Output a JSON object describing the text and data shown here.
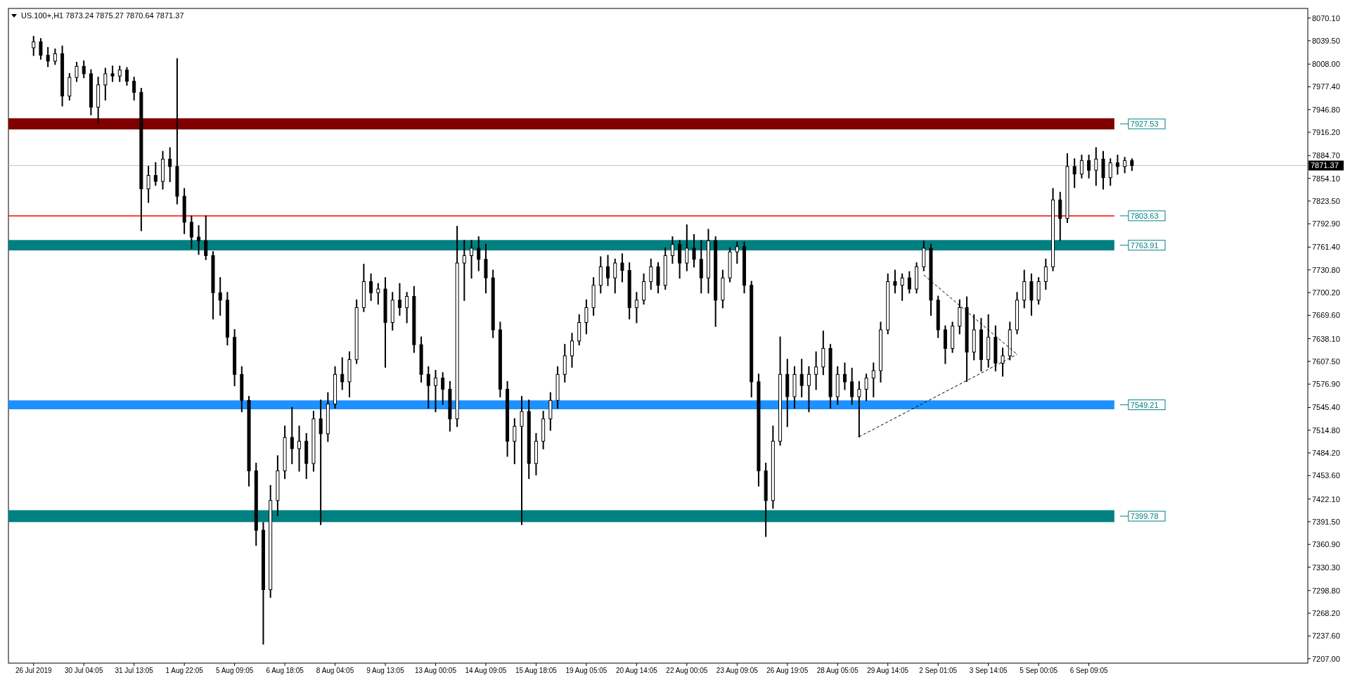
{
  "chart_data": {
    "type": "candlestick",
    "title": "US.100+,H1  7873.24 7875.27 7870.64 7871.37",
    "categories": [
      null,
      null,
      null,
      "26 Jul 2019",
      null,
      null,
      null,
      null,
      null,
      null,
      "30 Jul 04:05",
      null,
      null,
      null,
      null,
      null,
      null,
      "31 Jul 13:05",
      null,
      null,
      null,
      null,
      null,
      null,
      "1 Aug 22:05",
      null,
      null,
      null,
      null,
      null,
      null,
      "5 Aug 09:05",
      null,
      null,
      null,
      null,
      null,
      null,
      "6 Aug 18:05",
      null,
      null,
      null,
      null,
      null,
      null,
      "8 Aug 04:05",
      null,
      null,
      null,
      null,
      null,
      null,
      "9 Aug 13:05",
      null,
      null,
      null,
      null,
      null,
      null,
      "13 Aug 00:05",
      null,
      null,
      null,
      null,
      null,
      null,
      "14 Aug 09:05",
      null,
      null,
      null,
      null,
      null,
      null,
      "15 Aug 18:05",
      null,
      null,
      null,
      null,
      null,
      null,
      "19 Aug 05:05",
      null,
      null,
      null,
      null,
      null,
      null,
      "20 Aug 14:05",
      null,
      null,
      null,
      null,
      null,
      null,
      "22 Aug 00:05",
      null,
      null,
      null,
      null,
      null,
      null,
      "23 Aug 09:05",
      null,
      null,
      null,
      null,
      null,
      null,
      "26 Aug 19:05",
      null,
      null,
      null,
      null,
      null,
      null,
      "28 Aug 05:05",
      null,
      null,
      null,
      null,
      null,
      null,
      "29 Aug 14:05",
      null,
      null,
      null,
      null,
      null,
      null,
      "2 Sep 01:05",
      null,
      null,
      null,
      null,
      null,
      null,
      "3 Sep 14:05",
      null,
      null,
      null,
      null,
      null,
      null,
      "5 Sep 00:05",
      null,
      null,
      null,
      null,
      null,
      null,
      "6 Sep 09:05",
      null,
      null,
      null,
      null,
      null,
      null,
      null,
      null,
      null,
      null,
      null,
      null,
      null,
      null,
      null,
      null,
      null,
      null,
      null,
      null,
      null,
      null,
      null,
      null,
      null,
      null,
      null,
      null,
      null,
      null
    ],
    "ohlc": [
      null,
      null,
      null,
      [
        8030,
        8045,
        8020,
        8038
      ],
      [
        8038,
        8042,
        8015,
        8020
      ],
      [
        8020,
        8030,
        8005,
        8012
      ],
      [
        8012,
        8028,
        8008,
        8022
      ],
      [
        8022,
        8032,
        7952,
        7965
      ],
      [
        7965,
        7995,
        7960,
        7990
      ],
      [
        7990,
        8010,
        7985,
        8005
      ],
      [
        8005,
        8012,
        7990,
        7995
      ],
      [
        7995,
        8000,
        7940,
        7950
      ],
      [
        7950,
        7990,
        7929,
        7980
      ],
      [
        7980,
        8002,
        7960,
        7995
      ],
      [
        7995,
        8005,
        7985,
        7992
      ],
      [
        7992,
        8005,
        7985,
        8000
      ],
      [
        8000,
        8003,
        7980,
        7985
      ],
      [
        7985,
        7990,
        7960,
        7970
      ],
      [
        7970,
        7975,
        7784,
        7840
      ],
      [
        7840,
        7870,
        7822,
        7858
      ],
      [
        7858,
        7875,
        7845,
        7850
      ],
      [
        7850,
        7890,
        7840,
        7880
      ],
      [
        7880,
        7895,
        7850,
        7870
      ],
      [
        7870,
        8015,
        7820,
        7830
      ],
      [
        7830,
        7840,
        7780,
        7795
      ],
      [
        7795,
        7803,
        7760,
        7775
      ],
      [
        7775,
        7790,
        7752,
        7770
      ],
      [
        7770,
        7803,
        7745,
        7750
      ],
      [
        7750,
        7755,
        7665,
        7700
      ],
      [
        7700,
        7720,
        7670,
        7690
      ],
      [
        7690,
        7700,
        7630,
        7640
      ],
      [
        7640,
        7650,
        7575,
        7590
      ],
      [
        7590,
        7600,
        7540,
        7555
      ],
      [
        7555,
        7560,
        7440,
        7460
      ],
      [
        7460,
        7470,
        7360,
        7380
      ],
      [
        7380,
        7390,
        7227,
        7300
      ],
      [
        7300,
        7440,
        7290,
        7420
      ],
      [
        7420,
        7480,
        7400,
        7460
      ],
      [
        7460,
        7520,
        7450,
        7505
      ],
      [
        7505,
        7545,
        7470,
        7490
      ],
      [
        7490,
        7520,
        7460,
        7500
      ],
      [
        7500,
        7510,
        7450,
        7470
      ],
      [
        7470,
        7540,
        7460,
        7530
      ],
      [
        7530,
        7555,
        7388,
        7510
      ],
      [
        7510,
        7565,
        7500,
        7550
      ],
      [
        7550,
        7600,
        7545,
        7590
      ],
      [
        7590,
        7612,
        7570,
        7580
      ],
      [
        7580,
        7620,
        7560,
        7610
      ],
      [
        7610,
        7690,
        7605,
        7680
      ],
      [
        7680,
        7738,
        7675,
        7715
      ],
      [
        7715,
        7725,
        7690,
        7700
      ],
      [
        7700,
        7712,
        7685,
        7705
      ],
      [
        7705,
        7720,
        7600,
        7660
      ],
      [
        7660,
        7700,
        7650,
        7690
      ],
      [
        7690,
        7712,
        7670,
        7680
      ],
      [
        7680,
        7700,
        7660,
        7695
      ],
      [
        7695,
        7708,
        7620,
        7630
      ],
      [
        7630,
        7640,
        7580,
        7590
      ],
      [
        7590,
        7600,
        7545,
        7575
      ],
      [
        7575,
        7595,
        7540,
        7585
      ],
      [
        7585,
        7592,
        7550,
        7570
      ],
      [
        7570,
        7580,
        7514,
        7530
      ],
      [
        7530,
        7789,
        7520,
        7740
      ],
      [
        7740,
        7770,
        7690,
        7750
      ],
      [
        7750,
        7770,
        7720,
        7760
      ],
      [
        7760,
        7775,
        7730,
        7745
      ],
      [
        7745,
        7765,
        7700,
        7720
      ],
      [
        7720,
        7730,
        7640,
        7650
      ],
      [
        7650,
        7660,
        7560,
        7570
      ],
      [
        7570,
        7580,
        7480,
        7500
      ],
      [
        7500,
        7530,
        7470,
        7520
      ],
      [
        7520,
        7560,
        7388,
        7540
      ],
      [
        7540,
        7555,
        7450,
        7470
      ],
      [
        7470,
        7510,
        7455,
        7500
      ],
      [
        7500,
        7540,
        7490,
        7530
      ],
      [
        7530,
        7565,
        7515,
        7555
      ],
      [
        7555,
        7600,
        7545,
        7590
      ],
      [
        7590,
        7630,
        7580,
        7615
      ],
      [
        7615,
        7645,
        7600,
        7635
      ],
      [
        7635,
        7670,
        7630,
        7660
      ],
      [
        7660,
        7690,
        7645,
        7680
      ],
      [
        7680,
        7720,
        7670,
        7710
      ],
      [
        7710,
        7748,
        7700,
        7735
      ],
      [
        7735,
        7750,
        7710,
        7720
      ],
      [
        7720,
        7745,
        7700,
        7740
      ],
      [
        7740,
        7752,
        7715,
        7730
      ],
      [
        7730,
        7740,
        7665,
        7680
      ],
      [
        7680,
        7700,
        7660,
        7690
      ],
      [
        7690,
        7725,
        7685,
        7715
      ],
      [
        7715,
        7745,
        7705,
        7735
      ],
      [
        7735,
        7740,
        7700,
        7710
      ],
      [
        7710,
        7760,
        7705,
        7750
      ],
      [
        7750,
        7775,
        7740,
        7765
      ],
      [
        7765,
        7770,
        7720,
        7740
      ],
      [
        7740,
        7791,
        7730,
        7760
      ],
      [
        7760,
        7778,
        7735,
        7745
      ],
      [
        7745,
        7770,
        7700,
        7720
      ],
      [
        7720,
        7785,
        7700,
        7770
      ],
      [
        7770,
        7775,
        7655,
        7690
      ],
      [
        7690,
        7730,
        7680,
        7720
      ],
      [
        7720,
        7760,
        7715,
        7755
      ],
      [
        7755,
        7768,
        7740,
        7762
      ],
      [
        7762,
        7768,
        7700,
        7710
      ],
      [
        7710,
        7715,
        7560,
        7580
      ],
      [
        7580,
        7590,
        7440,
        7460
      ],
      [
        7460,
        7470,
        7372,
        7420
      ],
      [
        7420,
        7520,
        7410,
        7500
      ],
      [
        7500,
        7640,
        7495,
        7590
      ],
      [
        7590,
        7610,
        7520,
        7560
      ],
      [
        7560,
        7600,
        7545,
        7590
      ],
      [
        7590,
        7610,
        7560,
        7575
      ],
      [
        7575,
        7600,
        7540,
        7590
      ],
      [
        7590,
        7620,
        7570,
        7600
      ],
      [
        7600,
        7648,
        7590,
        7625
      ],
      [
        7625,
        7630,
        7545,
        7560
      ],
      [
        7560,
        7600,
        7550,
        7590
      ],
      [
        7590,
        7605,
        7570,
        7580
      ],
      [
        7580,
        7598,
        7550,
        7560
      ],
      [
        7560,
        7580,
        7506,
        7570
      ],
      [
        7570,
        7590,
        7555,
        7585
      ],
      [
        7585,
        7605,
        7560,
        7595
      ],
      [
        7595,
        7660,
        7580,
        7650
      ],
      [
        7650,
        7725,
        7645,
        7715
      ],
      [
        7715,
        7730,
        7700,
        7710
      ],
      [
        7710,
        7725,
        7690,
        7720
      ],
      [
        7720,
        7728,
        7700,
        7705
      ],
      [
        7705,
        7740,
        7700,
        7735
      ],
      [
        7735,
        7769,
        7730,
        7760
      ],
      [
        7760,
        7765,
        7670,
        7690
      ],
      [
        7690,
        7695,
        7640,
        7650
      ],
      [
        7650,
        7655,
        7605,
        7625
      ],
      [
        7625,
        7660,
        7620,
        7655
      ],
      [
        7655,
        7690,
        7645,
        7680
      ],
      [
        7680,
        7694,
        7581,
        7620
      ],
      [
        7620,
        7670,
        7610,
        7650
      ],
      [
        7650,
        7665,
        7595,
        7610
      ],
      [
        7610,
        7670,
        7600,
        7640
      ],
      [
        7640,
        7655,
        7595,
        7605
      ],
      [
        7605,
        7625,
        7588,
        7615
      ],
      [
        7615,
        7660,
        7610,
        7650
      ],
      [
        7650,
        7700,
        7645,
        7690
      ],
      [
        7690,
        7730,
        7680,
        7715
      ],
      [
        7715,
        7725,
        7670,
        7690
      ],
      [
        7690,
        7720,
        7685,
        7715
      ],
      [
        7715,
        7745,
        7705,
        7735
      ],
      [
        7735,
        7840,
        7730,
        7825
      ],
      [
        7825,
        7835,
        7771,
        7800
      ],
      [
        7800,
        7887,
        7795,
        7870
      ],
      [
        7870,
        7880,
        7842,
        7860
      ],
      [
        7860,
        7885,
        7855,
        7878
      ],
      [
        7878,
        7885,
        7855,
        7865
      ],
      [
        7865,
        7895,
        7845,
        7880
      ],
      [
        7880,
        7890,
        7840,
        7855
      ],
      [
        7855,
        7880,
        7845,
        7875
      ],
      [
        7875,
        7885,
        7860,
        7870
      ],
      [
        7870,
        7882,
        7862,
        7878
      ],
      [
        7878,
        7880,
        7865,
        7871.37
      ],
      null,
      null,
      null,
      null,
      null,
      null,
      null,
      null,
      null,
      null,
      null,
      null,
      null,
      null,
      null,
      null,
      null,
      null,
      null,
      null,
      null,
      null,
      null,
      null
    ],
    "series": [
      {
        "type": "line",
        "color": "#000000",
        "line_style": "dashed",
        "values": [
          null,
          null,
          null,
          null,
          null,
          null,
          null,
          null,
          null,
          null,
          null,
          null,
          null,
          null,
          null,
          null,
          null,
          null,
          null,
          null,
          null,
          null,
          null,
          null,
          null,
          null,
          null,
          null,
          null,
          null,
          null,
          null,
          null,
          null,
          null,
          null,
          null,
          null,
          null,
          null,
          null,
          null,
          null,
          null,
          null,
          null,
          null,
          null,
          null,
          null,
          null,
          null,
          null,
          null,
          null,
          null,
          null,
          null,
          null,
          null,
          null,
          null,
          null,
          null,
          null,
          null,
          null,
          null,
          null,
          null,
          null,
          null,
          null,
          null,
          null,
          null,
          null,
          null,
          null,
          null,
          null,
          null,
          null,
          null,
          null,
          null,
          null,
          null,
          null,
          null,
          null,
          null,
          null,
          null,
          null,
          null,
          null,
          null,
          null,
          null,
          null,
          null,
          null,
          null,
          null,
          null,
          null,
          null,
          null,
          null,
          null,
          null,
          null,
          null,
          null,
          null,
          null,
          null,
          7506,
          null,
          null,
          null,
          null,
          null,
          null,
          null,
          null,
          null,
          null,
          null,
          null,
          null,
          null,
          null,
          null,
          null,
          null,
          null,
          null,
          null,
          7617,
          null,
          null,
          null,
          null,
          null,
          null,
          null,
          null,
          null,
          null,
          null,
          null,
          null,
          null,
          null,
          null,
          null,
          null,
          null,
          null,
          null,
          null,
          null,
          null,
          null,
          null,
          null,
          null,
          null,
          null,
          null,
          null,
          null,
          null,
          null,
          null,
          null,
          null,
          null,
          null
        ]
      },
      {
        "type": "line",
        "color": "#000000",
        "line_style": "dashed",
        "values": [
          null,
          null,
          null,
          null,
          null,
          null,
          null,
          null,
          null,
          null,
          null,
          null,
          null,
          null,
          null,
          null,
          null,
          null,
          null,
          null,
          null,
          null,
          null,
          null,
          null,
          null,
          null,
          null,
          null,
          null,
          null,
          null,
          null,
          null,
          null,
          null,
          null,
          null,
          null,
          null,
          null,
          null,
          null,
          null,
          null,
          null,
          null,
          null,
          null,
          null,
          null,
          null,
          null,
          null,
          null,
          null,
          null,
          null,
          null,
          null,
          null,
          null,
          null,
          null,
          null,
          null,
          null,
          null,
          null,
          null,
          null,
          null,
          null,
          null,
          null,
          null,
          null,
          null,
          null,
          null,
          null,
          null,
          null,
          null,
          null,
          null,
          null,
          null,
          null,
          null,
          null,
          null,
          null,
          null,
          null,
          null,
          null,
          null,
          null,
          null,
          null,
          null,
          null,
          null,
          null,
          null,
          null,
          null,
          null,
          null,
          null,
          null,
          null,
          null,
          null,
          null,
          null,
          null,
          null,
          null,
          null,
          null,
          null,
          null,
          null,
          null,
          null,
          7724,
          null,
          null,
          null,
          null,
          null,
          null,
          null,
          null,
          null,
          null,
          null,
          null,
          7617,
          null,
          null,
          null,
          null,
          null,
          null,
          null,
          null,
          null,
          null,
          null,
          null,
          null,
          null,
          null,
          null,
          null,
          null,
          null,
          null,
          null,
          null,
          null,
          null,
          null,
          null,
          null,
          null,
          null,
          null,
          null,
          null,
          null,
          null,
          null,
          null,
          null,
          null,
          null,
          null
        ]
      }
    ],
    "ylim": [
      7201,
      8083
    ],
    "yticks": [
      {
        "value": 8070.1,
        "label": "8070.10"
      },
      {
        "value": 8039.5,
        "label": "8039.50"
      },
      {
        "value": 8008,
        "label": "8008.00"
      },
      {
        "value": 7977.4,
        "label": "7977.40"
      },
      {
        "value": 7946.8,
        "label": "7946.80"
      },
      {
        "value": 7916.2,
        "label": "7916.20"
      },
      {
        "value": 7884.7,
        "label": "7884.70"
      },
      {
        "value": 7854.1,
        "label": "7854.10"
      },
      {
        "value": 7823.5,
        "label": "7823.50"
      },
      {
        "value": 7792.9,
        "label": "7792.90"
      },
      {
        "value": 7761.4,
        "label": "7761.40"
      },
      {
        "value": 7730.8,
        "label": "7730.80"
      },
      {
        "value": 7700.2,
        "label": "7700.20"
      },
      {
        "value": 7669.6,
        "label": "7669.60"
      },
      {
        "value": 7638.1,
        "label": "7638.10"
      },
      {
        "value": 7607.5,
        "label": "7607.50"
      },
      {
        "value": 7576.9,
        "label": "7576.90"
      },
      {
        "value": 7545.4,
        "label": "7545.40"
      },
      {
        "value": 7514.8,
        "label": "7514.80"
      },
      {
        "value": 7484.2,
        "label": "7484.20"
      },
      {
        "value": 7453.6,
        "label": "7453.60"
      },
      {
        "value": 7422.1,
        "label": "7422.10"
      },
      {
        "value": 7391.5,
        "label": "7391.50"
      },
      {
        "value": 7360.9,
        "label": "7360.90"
      },
      {
        "value": 7330.3,
        "label": "7330.30"
      },
      {
        "value": 7298.8,
        "label": "7298.80"
      },
      {
        "value": 7268.2,
        "label": "7268.20"
      },
      {
        "value": 7237.6,
        "label": "7237.60"
      },
      {
        "value": 7207,
        "label": "7207.00"
      }
    ],
    "bands": [
      {
        "axis": "y",
        "from": 7920,
        "to": 7935,
        "label": "7927.53",
        "color": "#800000"
      },
      {
        "axis": "y",
        "from": 7757,
        "to": 7771,
        "label": "7763.91",
        "color": "#008080"
      },
      {
        "axis": "y",
        "from": 7543,
        "to": 7555,
        "label": "7549.21",
        "color": "#1e90ff"
      },
      {
        "axis": "y",
        "from": 7391,
        "to": 7407,
        "label": "7399.78",
        "color": "#008080"
      }
    ],
    "ref_lines": [
      {
        "axis": "y",
        "value": 7803.63,
        "label": "7803.63",
        "color": "#ff0000"
      },
      {
        "axis": "y",
        "value": 7871.37,
        "label": "7871.37",
        "color": "#c0c0c0"
      }
    ]
  }
}
